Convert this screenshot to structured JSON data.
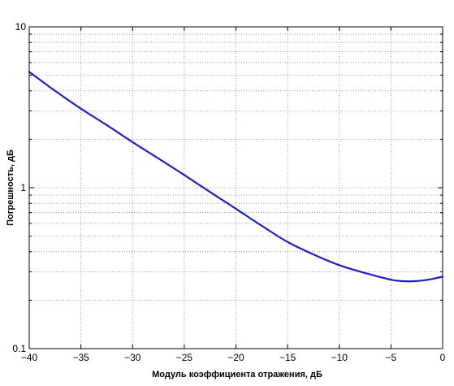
{
  "chart_data": {
    "type": "line",
    "title": "",
    "xlabel": "Модуль коэффициента отражения, дБ",
    "ylabel": "Погрешность, дБ",
    "xlim": [
      -40,
      0
    ],
    "ylim": [
      0.1,
      10
    ],
    "yscale": "log",
    "grid": true,
    "grid_style": "dotted",
    "line_color": "#1f1fc8",
    "x_ticks": [
      -40,
      -35,
      -30,
      -25,
      -20,
      -15,
      -10,
      -5,
      0
    ],
    "x_tick_labels": [
      "−40",
      "−35",
      "−30",
      "−25",
      "−20",
      "−15",
      "−10",
      "−5",
      "0"
    ],
    "y_ticks": [
      0.1,
      1,
      10
    ],
    "y_tick_labels": [
      "0.1",
      "1",
      "10"
    ],
    "series": [
      {
        "x": [
          -40,
          -37.5,
          -35,
          -32.5,
          -30,
          -27.5,
          -25,
          -22.5,
          -20,
          -17.5,
          -15,
          -12.5,
          -10,
          -7.5,
          -5,
          -4,
          -3,
          -2,
          -1,
          0
        ],
        "y": [
          5.25,
          4.0,
          3.1,
          2.45,
          1.92,
          1.52,
          1.2,
          0.94,
          0.74,
          0.58,
          0.46,
          0.385,
          0.33,
          0.295,
          0.268,
          0.263,
          0.262,
          0.265,
          0.271,
          0.28
        ]
      }
    ]
  }
}
